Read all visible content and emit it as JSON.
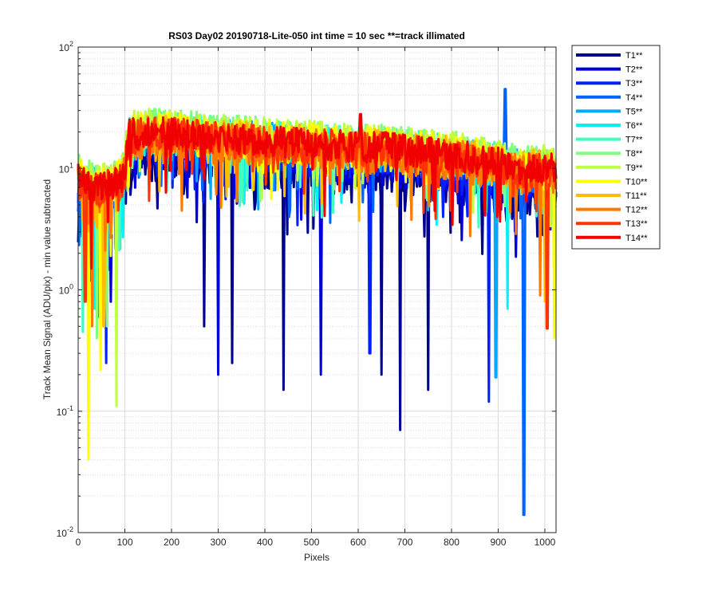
{
  "chart_data": {
    "type": "line",
    "title": "RS03 Day02 20190718-Lite-050 int time = 10 sec    **=track illimated",
    "xlabel": "Pixels",
    "ylabel": "Track Mean Signal (ADU/pix) - min value subtracted",
    "xlim": [
      0,
      1024
    ],
    "ylim": [
      0.01,
      100
    ],
    "yscale": "log",
    "grid": true,
    "minor_grid": true,
    "legend_position": "outside-top-right",
    "x_ticks": [
      "0",
      "100",
      "200",
      "300",
      "400",
      "500",
      "600",
      "700",
      "800",
      "900",
      "1000"
    ],
    "y_ticks": [
      {
        "base": "10",
        "exp": "-2"
      },
      {
        "base": "10",
        "exp": "-1"
      },
      {
        "base": "10",
        "exp": "0"
      },
      {
        "base": "10",
        "exp": "1"
      },
      {
        "base": "10",
        "exp": "2"
      }
    ],
    "profile": {
      "x": [
        0,
        20,
        50,
        80,
        95,
        100,
        105,
        110,
        150,
        200,
        300,
        400,
        500,
        600,
        650,
        700,
        800,
        850,
        900,
        950,
        1000,
        1024
      ],
      "y": [
        8.5,
        7.5,
        7.0,
        7.5,
        8.5,
        10,
        15,
        19,
        20,
        19.5,
        18,
        17,
        16,
        15,
        15,
        14,
        13,
        12,
        11,
        10,
        10,
        10
      ]
    },
    "series": [
      {
        "name": "T1**",
        "color": "#00008f",
        "offset": 0.62,
        "noise": 0.45,
        "dips": [
          [
            30,
            1.0
          ],
          [
            60,
            0.8
          ],
          [
            270,
            0.5
          ],
          [
            330,
            0.25
          ],
          [
            440,
            0.15
          ],
          [
            650,
            0.2
          ],
          [
            690,
            0.07
          ],
          [
            750,
            0.15
          ]
        ]
      },
      {
        "name": "T2**",
        "color": "#0000d8",
        "offset": 0.72,
        "noise": 0.4,
        "dips": [
          [
            25,
            1.2
          ],
          [
            70,
            0.8
          ],
          [
            300,
            0.2
          ],
          [
            520,
            0.2
          ]
        ]
      },
      {
        "name": "T3**",
        "color": "#0020ff",
        "offset": 0.8,
        "noise": 0.4,
        "dips": [
          [
            60,
            0.25
          ],
          [
            880,
            0.12
          ],
          [
            625,
            0.3
          ]
        ]
      },
      {
        "name": "T4**",
        "color": "#0064ff",
        "offset": 0.9,
        "noise": 0.35,
        "dips": [
          [
            18,
            0.9
          ],
          [
            955,
            0.014
          ]
        ],
        "spikes": [
          [
            915,
            45
          ]
        ]
      },
      {
        "name": "T5**",
        "color": "#00a8ff",
        "offset": 1.0,
        "noise": 0.35,
        "dips": [
          [
            45,
            0.6
          ],
          [
            895,
            0.19
          ]
        ]
      },
      {
        "name": "T6**",
        "color": "#08f0f0",
        "offset": 0.95,
        "noise": 0.4,
        "dips": [
          [
            35,
            0.7
          ],
          [
            920,
            0.7
          ]
        ]
      },
      {
        "name": "T7**",
        "color": "#40ffc0",
        "offset": 1.0,
        "noise": 0.4,
        "dips": [
          [
            10,
            0.45
          ],
          [
            50,
            0.9
          ]
        ]
      },
      {
        "name": "T8**",
        "color": "#80ff80",
        "offset": 1.05,
        "noise": 0.4,
        "dips": [
          [
            40,
            0.4
          ],
          [
            62,
            0.5
          ]
        ]
      },
      {
        "name": "T9**",
        "color": "#c0ff40",
        "offset": 1.1,
        "noise": 0.35,
        "dips": [
          [
            82,
            0.11
          ]
        ]
      },
      {
        "name": "T10**",
        "color": "#ffff00",
        "offset": 1.0,
        "noise": 0.4,
        "dips": [
          [
            22,
            0.04
          ],
          [
            48,
            0.22
          ],
          [
            1020,
            0.4
          ]
        ]
      },
      {
        "name": "T11**",
        "color": "#ffbc00",
        "offset": 0.95,
        "noise": 0.4,
        "dips": [
          [
            55,
            0.5
          ],
          [
            1000,
            0.8
          ]
        ]
      },
      {
        "name": "T12**",
        "color": "#ff7800",
        "offset": 0.9,
        "noise": 0.4,
        "dips": [
          [
            30,
            0.5
          ],
          [
            990,
            0.9
          ]
        ]
      },
      {
        "name": "T13**",
        "color": "#ff3400",
        "offset": 0.95,
        "noise": 0.35,
        "dips": [
          [
            15,
            0.8
          ],
          [
            1005,
            0.48
          ]
        ]
      },
      {
        "name": "T14**",
        "color": "#f00000",
        "offset": 1.0,
        "noise": 0.3,
        "dips": [
          [
            28,
            1.5
          ]
        ],
        "spikes": [
          [
            605,
            28
          ]
        ]
      }
    ]
  }
}
